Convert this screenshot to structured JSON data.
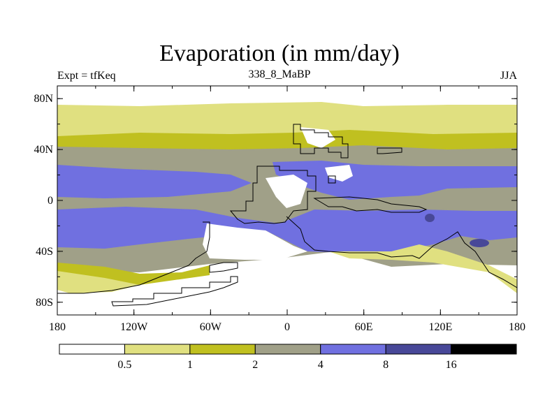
{
  "title": "Evaporation (in mm/day)",
  "left_label": "Expt = tfKeq",
  "center_label": "338_8_MaBP",
  "right_label": "JJA",
  "lat_ticks": [
    {
      "label": "80N",
      "lat": 80
    },
    {
      "label": "40N",
      "lat": 40
    },
    {
      "label": "0",
      "lat": 0
    },
    {
      "label": "40S",
      "lat": -40
    },
    {
      "label": "80S",
      "lat": -80
    }
  ],
  "lon_ticks": [
    {
      "label": "180",
      "lon": -180
    },
    {
      "label": "120W",
      "lon": -120
    },
    {
      "label": "60W",
      "lon": -60
    },
    {
      "label": "0",
      "lon": 0
    },
    {
      "label": "60E",
      "lon": 60
    },
    {
      "label": "120E",
      "lon": 120
    },
    {
      "label": "180",
      "lon": 180
    }
  ],
  "colorbar": {
    "levels": [
      "0.5",
      "1",
      "2",
      "4",
      "8",
      "16"
    ],
    "colors": [
      "#ffffff",
      "#e0e080",
      "#c0c020",
      "#a0a088",
      "#7070e0",
      "#484898",
      "#000000"
    ]
  },
  "colors": {
    "white": "#ffffff",
    "lightyellow": "#e0e080",
    "olive": "#c0c020",
    "gray": "#a0a088",
    "blue": "#7070e0",
    "darkblue": "#484898"
  }
}
